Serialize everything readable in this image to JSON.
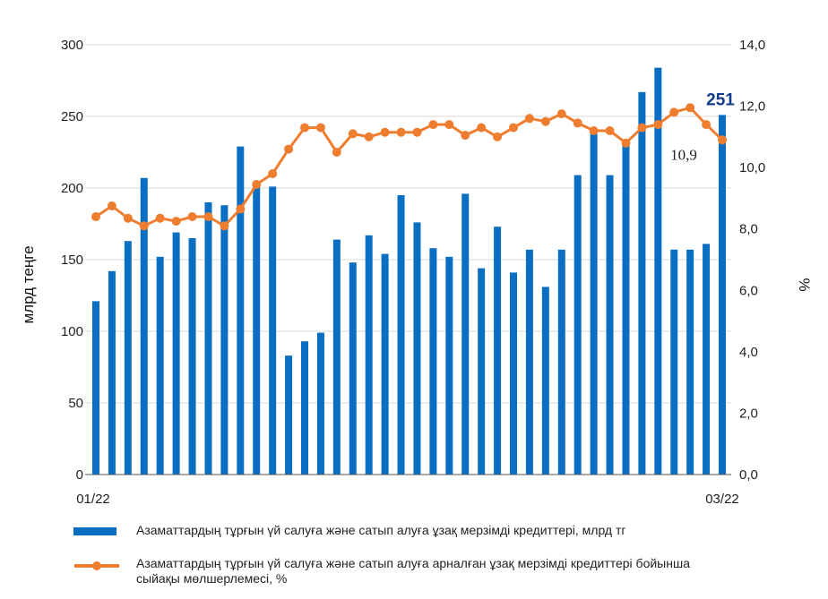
{
  "colors": {
    "bar": "#0a6fc2",
    "line": "#ee7d2f",
    "annotation_bar": "#123d8a",
    "grid": "#d9d9d9"
  },
  "chart_data": {
    "type": "bar",
    "title": "",
    "x_first_label": "01/22",
    "x_last_label": "03/22",
    "left_axis": {
      "label": "млрд теңге",
      "ylim": [
        0,
        300
      ],
      "ticks": [
        "0",
        "50",
        "100",
        "150",
        "200",
        "250",
        "300"
      ]
    },
    "right_axis": {
      "label": "%",
      "ylim": [
        0,
        14
      ],
      "ticks": [
        "0,0",
        "2,0",
        "4,0",
        "6,0",
        "8,0",
        "10,0",
        "12,0",
        "14,0"
      ]
    },
    "grid": true,
    "legend_position": "bottom",
    "series": [
      {
        "name": "Азаматтардың тұрғын үй салуға және сатып алуға ұзақ мерзімді кредиттері, млрд тг",
        "type": "bar",
        "axis": "left",
        "values": [
          121,
          142,
          163,
          207,
          152,
          169,
          165,
          190,
          188,
          229,
          203,
          201,
          83,
          93,
          99,
          164,
          148,
          167,
          154,
          195,
          176,
          158,
          152,
          196,
          144,
          173,
          141,
          157,
          131,
          157,
          209,
          238,
          209,
          232,
          267,
          284,
          157,
          157,
          161,
          251
        ]
      },
      {
        "name": "Азаматтардың тұрғын үй салуға және сатып алуға арналған ұзақ мерзімді кредиттері бойынша сыйақы мөлшерлемесі, %",
        "type": "line",
        "axis": "right",
        "values": [
          8.4,
          8.75,
          8.35,
          8.1,
          8.35,
          8.25,
          8.4,
          8.4,
          8.1,
          8.65,
          9.45,
          9.8,
          10.6,
          11.3,
          11.3,
          10.5,
          11.1,
          11.0,
          11.15,
          11.15,
          11.15,
          11.4,
          11.4,
          11.05,
          11.3,
          11.0,
          11.3,
          11.6,
          11.5,
          11.75,
          11.45,
          11.2,
          11.2,
          10.8,
          11.3,
          11.4,
          11.8,
          11.95,
          11.4,
          10.9
        ]
      }
    ],
    "annotations": [
      {
        "text": "251",
        "series": 0,
        "index": 39
      },
      {
        "text": "10,9",
        "series": 1,
        "index": 39
      }
    ]
  }
}
